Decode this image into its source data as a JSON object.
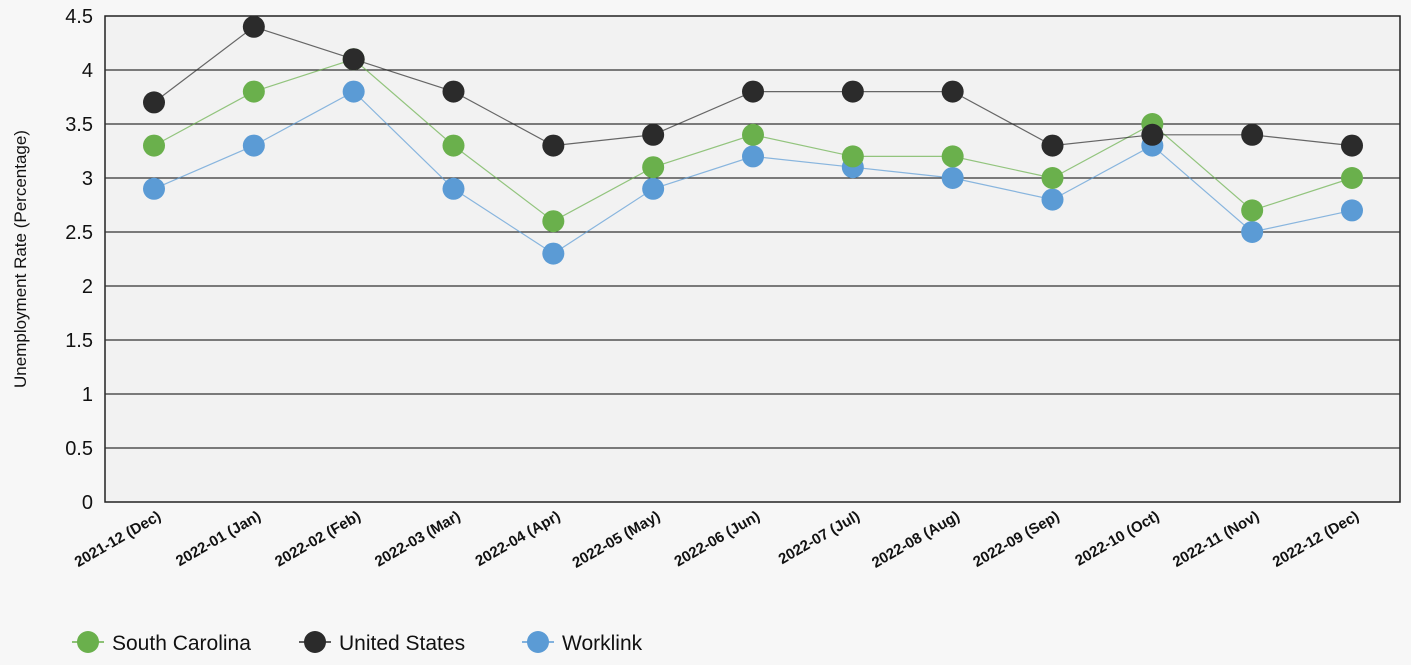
{
  "chart_data": {
    "type": "line",
    "title": "",
    "xlabel": "",
    "ylabel": "Unemployment Rate (Percentage)",
    "ylim": [
      0,
      4.5
    ],
    "yticks": [
      "0",
      "0.5",
      "1",
      "1.5",
      "2",
      "2.5",
      "3",
      "3.5",
      "4",
      "4.5"
    ],
    "grid": "horizontal",
    "legend_position": "bottom-left",
    "categories": [
      "2021-12 (Dec)",
      "2022-01 (Jan)",
      "2022-02 (Feb)",
      "2022-03 (Mar)",
      "2022-04 (Apr)",
      "2022-05 (May)",
      "2022-06 (Jun)",
      "2022-07 (Jul)",
      "2022-08 (Aug)",
      "2022-09 (Sep)",
      "2022-10 (Oct)",
      "2022-11 (Nov)",
      "2022-12 (Dec)"
    ],
    "series": [
      {
        "name": "South Carolina",
        "color": "#6ab04c",
        "values": [
          3.3,
          3.8,
          4.1,
          3.3,
          2.6,
          3.1,
          3.4,
          3.2,
          3.2,
          3.0,
          3.5,
          2.7,
          3.0
        ]
      },
      {
        "name": "United States",
        "color": "#2b2b2b",
        "values": [
          3.7,
          4.4,
          4.1,
          3.8,
          3.3,
          3.4,
          3.8,
          3.8,
          3.8,
          3.3,
          3.4,
          3.4,
          3.3
        ]
      },
      {
        "name": "Worklink",
        "color": "#5b9bd5",
        "values": [
          2.9,
          3.3,
          3.8,
          2.9,
          2.3,
          2.9,
          3.2,
          3.1,
          3.0,
          2.8,
          3.3,
          2.5,
          2.7
        ]
      }
    ]
  }
}
